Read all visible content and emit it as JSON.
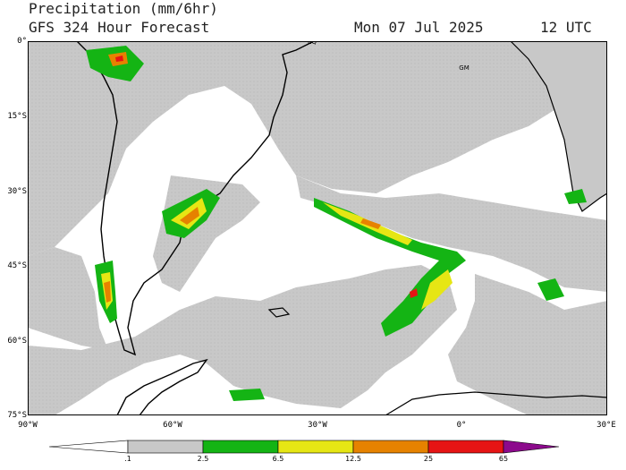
{
  "header": {
    "title": "Precipitation (mm/6hr)",
    "subtitle": "GFS 324 Hour Forecast",
    "datetime": "Mon 07 Jul 2025",
    "utc": "12 UTC"
  },
  "axes": {
    "lat_labels": [
      "0°",
      "15°S",
      "30°S",
      "45°S",
      "60°S",
      "75°S"
    ],
    "lon_labels": [
      "90°W",
      "60°W",
      "30°W",
      "0°",
      "30°E"
    ]
  },
  "map_labels": {
    "eq": "EQ",
    "gm": "GM"
  },
  "legend": {
    "ticks": [
      ".1",
      "2.5",
      "6.5",
      "12.5",
      "25",
      "65"
    ],
    "colors": [
      "#ffffff",
      "#c8c8c8",
      "#14b414",
      "#e6e614",
      "#e68200",
      "#e61414",
      "#8c0a8c"
    ]
  },
  "colors": {
    "light": "#c8c8c8",
    "green": "#14b414",
    "yellow": "#e6e614",
    "orange": "#e68200",
    "red": "#e61414",
    "purple": "#8c0a8c"
  }
}
